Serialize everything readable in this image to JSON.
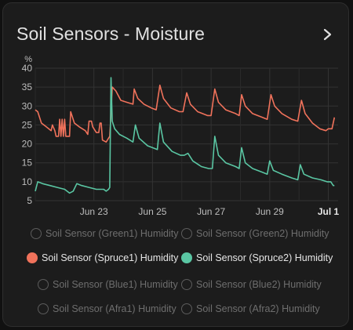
{
  "card": {
    "title": "Soil Sensors - Moisture"
  },
  "chart_data": {
    "type": "line",
    "ylabel": "%",
    "ylim": [
      5,
      40
    ],
    "yticks": [
      "5",
      "10",
      "15",
      "20",
      "25",
      "30",
      "35",
      "40"
    ],
    "x_range": [
      "2023-06-21",
      "2023-07-01"
    ],
    "xticks": [
      {
        "label": "Jun 23",
        "date": "2023-06-23",
        "bold": false
      },
      {
        "label": "Jun 25",
        "date": "2023-06-25",
        "bold": false
      },
      {
        "label": "Jun 27",
        "date": "2023-06-27",
        "bold": false
      },
      {
        "label": "Jun 29",
        "date": "2023-06-29",
        "bold": false
      },
      {
        "label": "Jul 1",
        "date": "2023-07-01",
        "bold": true
      }
    ],
    "grid": true,
    "series": [
      {
        "name": "Soil Sensor (Spruce1) Humidity",
        "color": "#f0725b",
        "points": [
          [
            "2023-06-21T00:00",
            29
          ],
          [
            "2023-06-21T02:00",
            28.5
          ],
          [
            "2023-06-21T05:00",
            25.5
          ],
          [
            "2023-06-21T09:00",
            24.5
          ],
          [
            "2023-06-21T13:00",
            23.5
          ],
          [
            "2023-06-21T14:00",
            25
          ],
          [
            "2023-06-21T16:00",
            23.5
          ],
          [
            "2023-06-21T17:00",
            22
          ],
          [
            "2023-06-21T19:00",
            22
          ],
          [
            "2023-06-21T20:00",
            26.5
          ],
          [
            "2023-06-21T21:00",
            22
          ],
          [
            "2023-06-21T22:00",
            26.5
          ],
          [
            "2023-06-21T23:00",
            22
          ],
          [
            "2023-06-22T00:00",
            26.5
          ],
          [
            "2023-06-22T01:00",
            22
          ],
          [
            "2023-06-22T04:00",
            22
          ],
          [
            "2023-06-22T05:00",
            28.5
          ],
          [
            "2023-06-22T08:00",
            25.5
          ],
          [
            "2023-06-22T12:00",
            24.5
          ],
          [
            "2023-06-22T17:00",
            23.5
          ],
          [
            "2023-06-22T19:00",
            22.5
          ],
          [
            "2023-06-22T20:00",
            26
          ],
          [
            "2023-06-22T22:00",
            26
          ],
          [
            "2023-06-22T23:00",
            24.5
          ],
          [
            "2023-06-23T02:00",
            23
          ],
          [
            "2023-06-23T04:00",
            23
          ],
          [
            "2023-06-23T05:00",
            25.5
          ],
          [
            "2023-06-23T06:00",
            25.5
          ],
          [
            "2023-06-23T07:00",
            21
          ],
          [
            "2023-06-23T10:00",
            20.5
          ],
          [
            "2023-06-23T13:00",
            22
          ],
          [
            "2023-06-23T14:00",
            28
          ],
          [
            "2023-06-23T15:00",
            35
          ],
          [
            "2023-06-23T18:00",
            34
          ],
          [
            "2023-06-23T22:00",
            31.5
          ],
          [
            "2023-06-24T03:00",
            31
          ],
          [
            "2023-06-24T08:00",
            30.5
          ],
          [
            "2023-06-24T09:00",
            34.5
          ],
          [
            "2023-06-24T12:00",
            32
          ],
          [
            "2023-06-24T17:00",
            30.5
          ],
          [
            "2023-06-24T23:00",
            29.5
          ],
          [
            "2023-06-25T03:00",
            29
          ],
          [
            "2023-06-25T06:00",
            35.5
          ],
          [
            "2023-06-25T09:00",
            32
          ],
          [
            "2023-06-25T15:00",
            29.5
          ],
          [
            "2023-06-25T22:00",
            28.5
          ],
          [
            "2023-06-26T01:00",
            28.5
          ],
          [
            "2023-06-26T04:00",
            33.5
          ],
          [
            "2023-06-26T07:00",
            30.5
          ],
          [
            "2023-06-26T13:00",
            28.5
          ],
          [
            "2023-06-26T21:00",
            27.5
          ],
          [
            "2023-06-27T00:00",
            27.5
          ],
          [
            "2023-06-27T03:00",
            34.5
          ],
          [
            "2023-06-27T06:00",
            31
          ],
          [
            "2023-06-27T12:00",
            29
          ],
          [
            "2023-06-27T20:00",
            28
          ],
          [
            "2023-06-27T23:00",
            27.5
          ],
          [
            "2023-06-28T01:00",
            33
          ],
          [
            "2023-06-28T04:00",
            30
          ],
          [
            "2023-06-28T10:00",
            28
          ],
          [
            "2023-06-28T18:00",
            27
          ],
          [
            "2023-06-28T22:00",
            26.5
          ],
          [
            "2023-06-29T01:00",
            33
          ],
          [
            "2023-06-29T04:00",
            30
          ],
          [
            "2023-06-29T10:00",
            28
          ],
          [
            "2023-06-29T18:00",
            26.5
          ],
          [
            "2023-06-29T23:00",
            26
          ],
          [
            "2023-06-30T02:00",
            31.5
          ],
          [
            "2023-06-30T05:00",
            28
          ],
          [
            "2023-06-30T11:00",
            25.5
          ],
          [
            "2023-06-30T17:00",
            24
          ],
          [
            "2023-06-30T22:00",
            23.5
          ],
          [
            "2023-07-01T00:00",
            24
          ],
          [
            "2023-07-01T03:00",
            24
          ],
          [
            "2023-07-01T05:00",
            27
          ]
        ]
      },
      {
        "name": "Soil Sensor (Spruce2) Humidity",
        "color": "#5ac6a3",
        "points": [
          [
            "2023-06-21T00:00",
            7.5
          ],
          [
            "2023-06-21T02:00",
            10
          ],
          [
            "2023-06-21T06:00",
            9.5
          ],
          [
            "2023-06-21T12:00",
            9
          ],
          [
            "2023-06-21T18:00",
            8.5
          ],
          [
            "2023-06-22T00:00",
            8
          ],
          [
            "2023-06-22T04:00",
            7
          ],
          [
            "2023-06-22T07:00",
            7.5
          ],
          [
            "2023-06-22T10:00",
            9.5
          ],
          [
            "2023-06-22T14:00",
            9
          ],
          [
            "2023-06-22T20:00",
            8.5
          ],
          [
            "2023-06-23T02:00",
            8
          ],
          [
            "2023-06-23T08:00",
            8
          ],
          [
            "2023-06-23T10:00",
            7.5
          ],
          [
            "2023-06-23T12:00",
            8
          ],
          [
            "2023-06-23T13:00",
            8.5
          ],
          [
            "2023-06-23T14:00",
            37.5
          ],
          [
            "2023-06-23T15:00",
            26
          ],
          [
            "2023-06-23T17:00",
            24
          ],
          [
            "2023-06-23T21:00",
            22.5
          ],
          [
            "2023-06-24T03:00",
            21.5
          ],
          [
            "2023-06-24T08:00",
            20.5
          ],
          [
            "2023-06-24T10:00",
            25
          ],
          [
            "2023-06-24T13:00",
            21.5
          ],
          [
            "2023-06-24T20:00",
            19.5
          ],
          [
            "2023-06-25T04:00",
            18.5
          ],
          [
            "2023-06-25T06:00",
            25.5
          ],
          [
            "2023-06-25T09:00",
            20.5
          ],
          [
            "2023-06-25T16:00",
            18
          ],
          [
            "2023-06-25T23:00",
            17
          ],
          [
            "2023-06-26T02:00",
            17
          ],
          [
            "2023-06-26T05:00",
            17.5
          ],
          [
            "2023-06-26T09:00",
            15.5
          ],
          [
            "2023-06-26T16:00",
            14
          ],
          [
            "2023-06-26T22:00",
            13.5
          ],
          [
            "2023-06-27T01:00",
            13.5
          ],
          [
            "2023-06-27T03:00",
            22
          ],
          [
            "2023-06-27T06:00",
            17
          ],
          [
            "2023-06-27T12:00",
            15
          ],
          [
            "2023-06-27T20:00",
            14
          ],
          [
            "2023-06-27T23:00",
            13.5
          ],
          [
            "2023-06-28T01:00",
            19
          ],
          [
            "2023-06-28T04:00",
            15
          ],
          [
            "2023-06-28T10:00",
            13.5
          ],
          [
            "2023-06-28T18:00",
            12.5
          ],
          [
            "2023-06-28T22:00",
            12
          ],
          [
            "2023-06-29T00:00",
            15.5
          ],
          [
            "2023-06-29T03:00",
            13
          ],
          [
            "2023-06-29T10:00",
            12
          ],
          [
            "2023-06-29T18:00",
            11
          ],
          [
            "2023-06-29T23:00",
            10.5
          ],
          [
            "2023-06-30T01:00",
            14.5
          ],
          [
            "2023-06-30T04:00",
            12
          ],
          [
            "2023-06-30T11:00",
            11
          ],
          [
            "2023-06-30T18:00",
            10.5
          ],
          [
            "2023-06-30T23:00",
            10
          ],
          [
            "2023-07-01T02:00",
            10
          ],
          [
            "2023-07-01T04:00",
            9
          ],
          [
            "2023-07-01T05:00",
            9
          ]
        ]
      }
    ]
  },
  "legend": [
    {
      "label": "Soil Sensor (Green1) Humidity",
      "active": false,
      "color": ""
    },
    {
      "label": "Soil Sensor (Green2) Humidity",
      "active": false,
      "color": ""
    },
    {
      "label": "Soil Sensor (Spruce1) Humidity",
      "active": true,
      "color": "#f0725b"
    },
    {
      "label": "Soil Sensor (Spruce2) Humidity",
      "active": true,
      "color": "#5ac6a3"
    },
    {
      "label": "Soil Sensor (Blue1) Humidity",
      "active": false,
      "color": ""
    },
    {
      "label": "Soil Sensor (Blue2) Humidity",
      "active": false,
      "color": ""
    },
    {
      "label": "Soil Sensor (Afra1) Humidity",
      "active": false,
      "color": ""
    },
    {
      "label": "Soil Sensor (Afra2) Humidity",
      "active": false,
      "color": ""
    }
  ],
  "icons": {
    "more_info": "chevron-right-icon"
  }
}
